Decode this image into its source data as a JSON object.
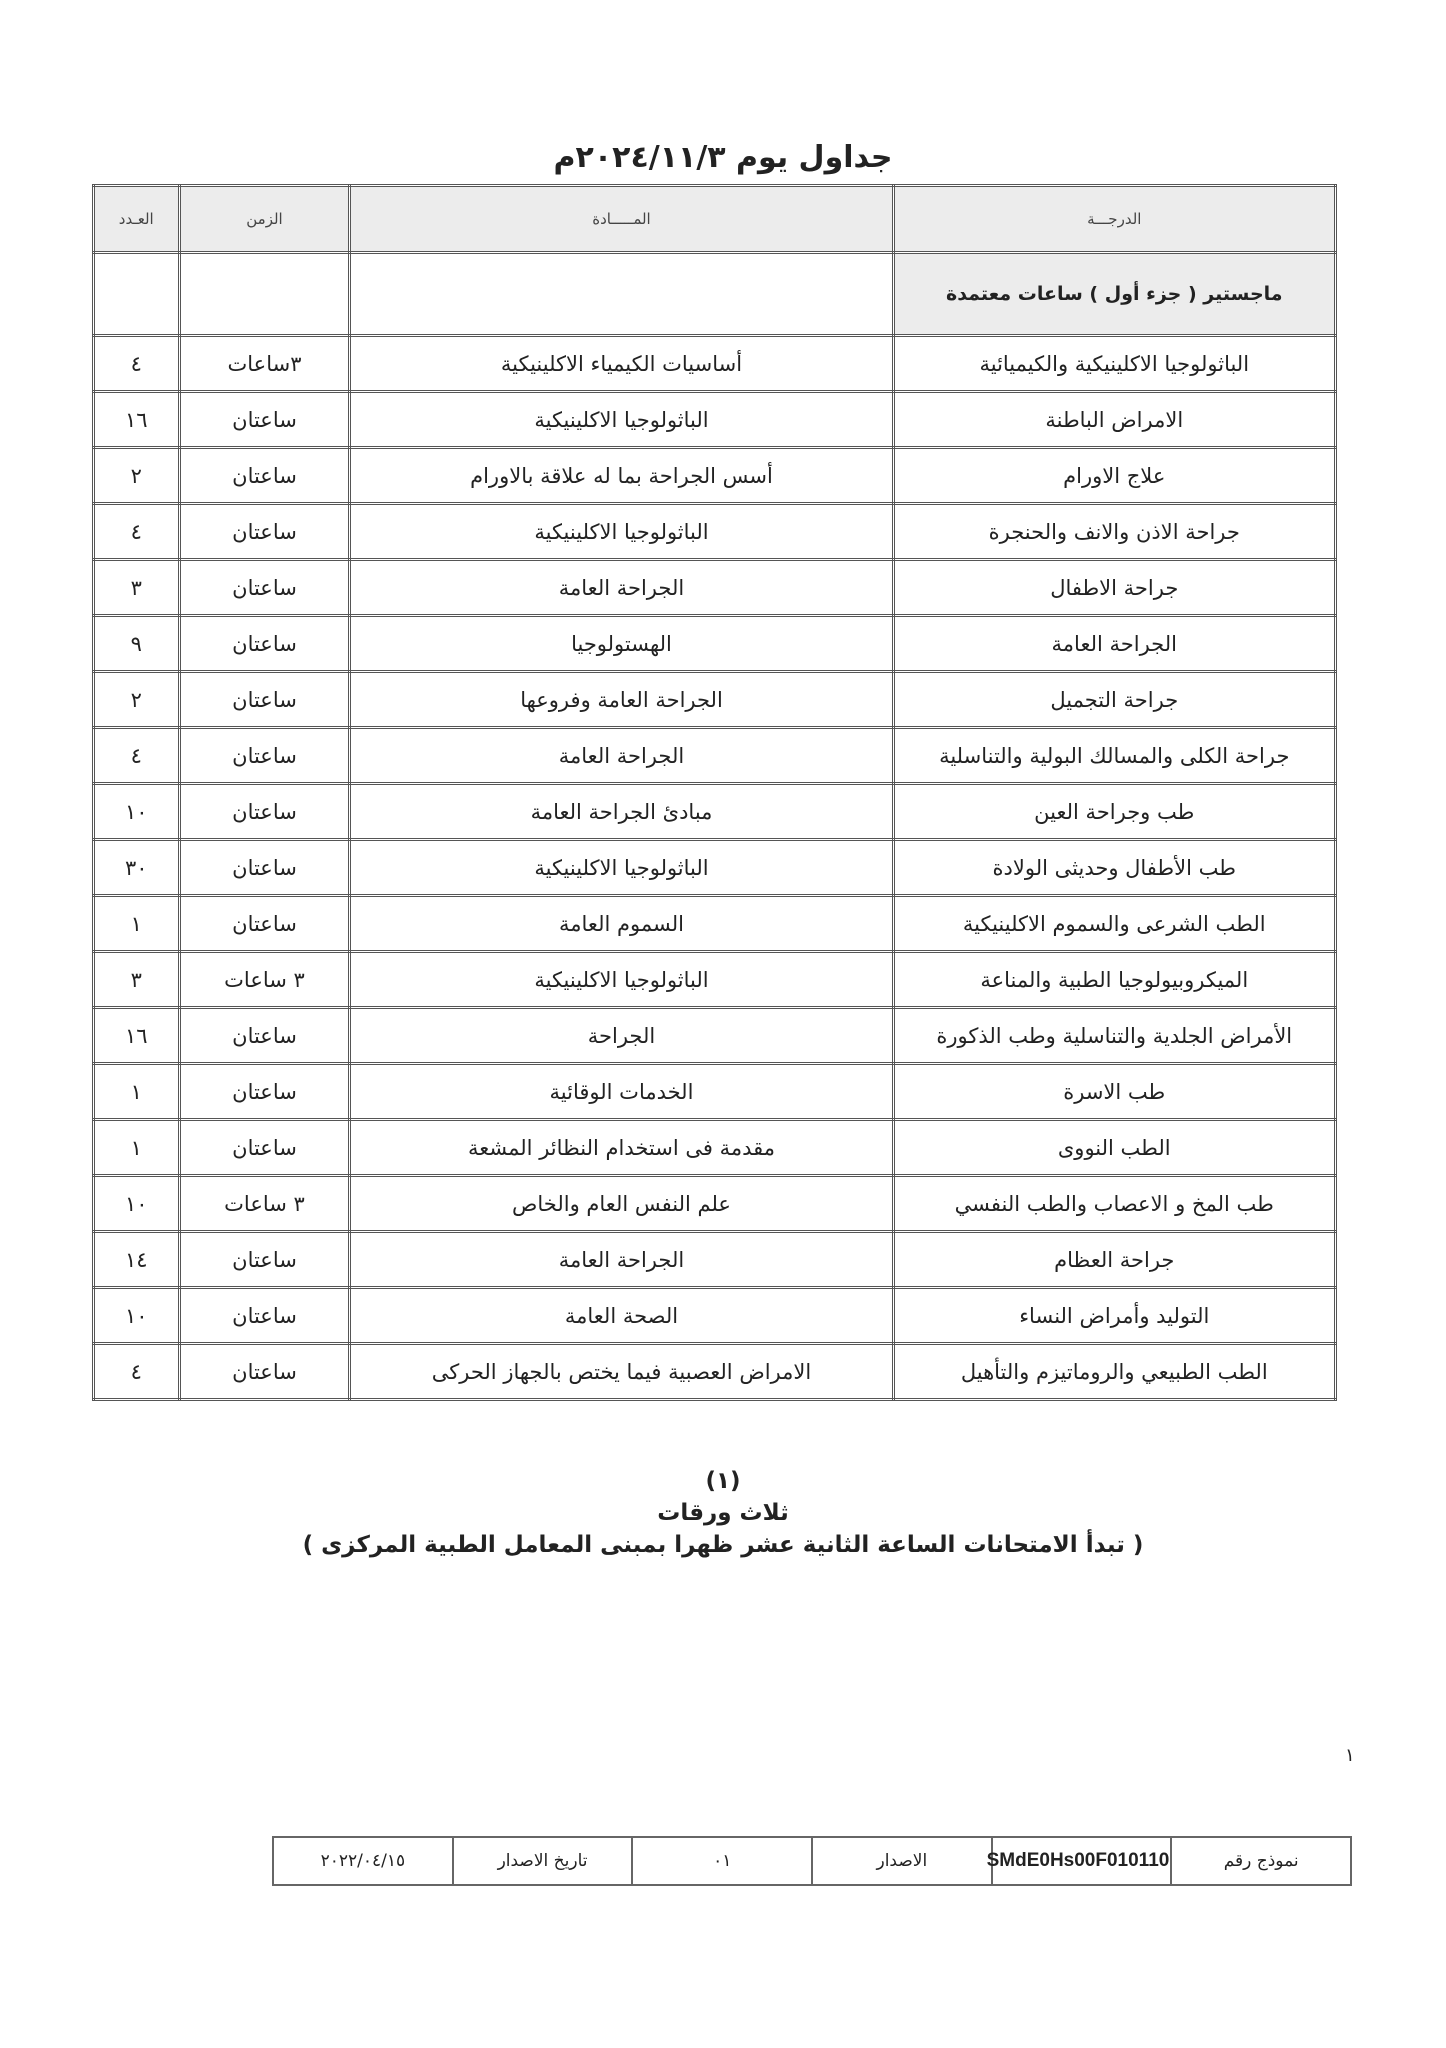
{
  "title": "جداول يوم ٢٠٢٤/١١/٣م",
  "table": {
    "headers": {
      "degree": "الدرجـــة",
      "subject": "المـــــادة",
      "time": "الزمن",
      "count": "العـدد"
    },
    "section": "ماجستير ( جزء أول ) ساعات معتمدة",
    "rows": [
      {
        "degree": "الباثولوجيا الاكلينيكية والكيميائية",
        "subject": "أساسيات الكيمياء الاكلينيكية",
        "time": "٣ساعات",
        "count": "٤"
      },
      {
        "degree": "الامراض الباطنة",
        "subject": "الباثولوجيا الاكلينيكية",
        "time": "ساعتان",
        "count": "١٦"
      },
      {
        "degree": "علاج الاورام",
        "subject": "أسس الجراحة بما له علاقة بالاورام",
        "time": "ساعتان",
        "count": "٢"
      },
      {
        "degree": "جراحة الاذن والانف والحنجرة",
        "subject": "الباثولوجيا الاكلينيكية",
        "time": "ساعتان",
        "count": "٤"
      },
      {
        "degree": "جراحة الاطفال",
        "subject": "الجراحة العامة",
        "time": "ساعتان",
        "count": "٣"
      },
      {
        "degree": "الجراحة العامة",
        "subject": "الهستولوجيا",
        "time": "ساعتان",
        "count": "٩"
      },
      {
        "degree": "جراحة التجميل",
        "subject": "الجراحة العامة وفروعها",
        "time": "ساعتان",
        "count": "٢"
      },
      {
        "degree": "جراحة الكلى والمسالك البولية والتناسلية",
        "subject": "الجراحة العامة",
        "time": "ساعتان",
        "count": "٤"
      },
      {
        "degree": "طب وجراحة العين",
        "subject": "مبادئ الجراحة العامة",
        "time": "ساعتان",
        "count": "١٠"
      },
      {
        "degree": "طب الأطفال وحديثى الولادة",
        "subject": "الباثولوجيا الاكلينيكية",
        "time": "ساعتان",
        "count": "٣٠"
      },
      {
        "degree": "الطب الشرعى والسموم الاكلينيكية",
        "subject": "السموم العامة",
        "time": "ساعتان",
        "count": "١"
      },
      {
        "degree": "الميكروبيولوجيا الطبية والمناعة",
        "subject": "الباثولوجيا الاكلينيكية",
        "time": "٣ ساعات",
        "count": "٣"
      },
      {
        "degree": "الأمراض الجلدية والتناسلية وطب الذكورة",
        "subject": "الجراحة",
        "time": "ساعتان",
        "count": "١٦"
      },
      {
        "degree": "طب الاسرة",
        "subject": "الخدمات الوقائية",
        "time": "ساعتان",
        "count": "١"
      },
      {
        "degree": "الطب النووى",
        "subject": "مقدمة فى استخدام النظائر المشعة",
        "time": "ساعتان",
        "count": "١"
      },
      {
        "degree": "طب المخ و الاعصاب والطب النفسي",
        "subject": "علم النفس العام والخاص",
        "time": "٣ ساعات",
        "count": "١٠"
      },
      {
        "degree": "جراحة العظام",
        "subject": "الجراحة العامة",
        "time": "ساعتان",
        "count": "١٤"
      },
      {
        "degree": "التوليد وأمراض النساء",
        "subject": "الصحة العامة",
        "time": "ساعتان",
        "count": "١٠"
      },
      {
        "degree": "الطب الطبيعي والروماتيزم والتأهيل",
        "subject": "الامراض العصبية فيما يختص بالجهاز الحركى",
        "time": "ساعتان",
        "count": "٤"
      }
    ]
  },
  "footer": {
    "group": "(١)",
    "papers": "ثلاث ورقات",
    "note": "( تبدأ الامتحانات الساعة الثانية عشر ظهرا بمبنى المعامل الطبية المركزى )"
  },
  "page_number": "١",
  "form": {
    "model_label": "نموذج رقم",
    "model_code": "SMdE0Hs00F010110",
    "issue_label": "الاصدار",
    "issue_value": "٠١",
    "issue_date_label": "تاريخ الاصدار",
    "issue_date": "٢٠٢٢/٠٤/١٥"
  }
}
